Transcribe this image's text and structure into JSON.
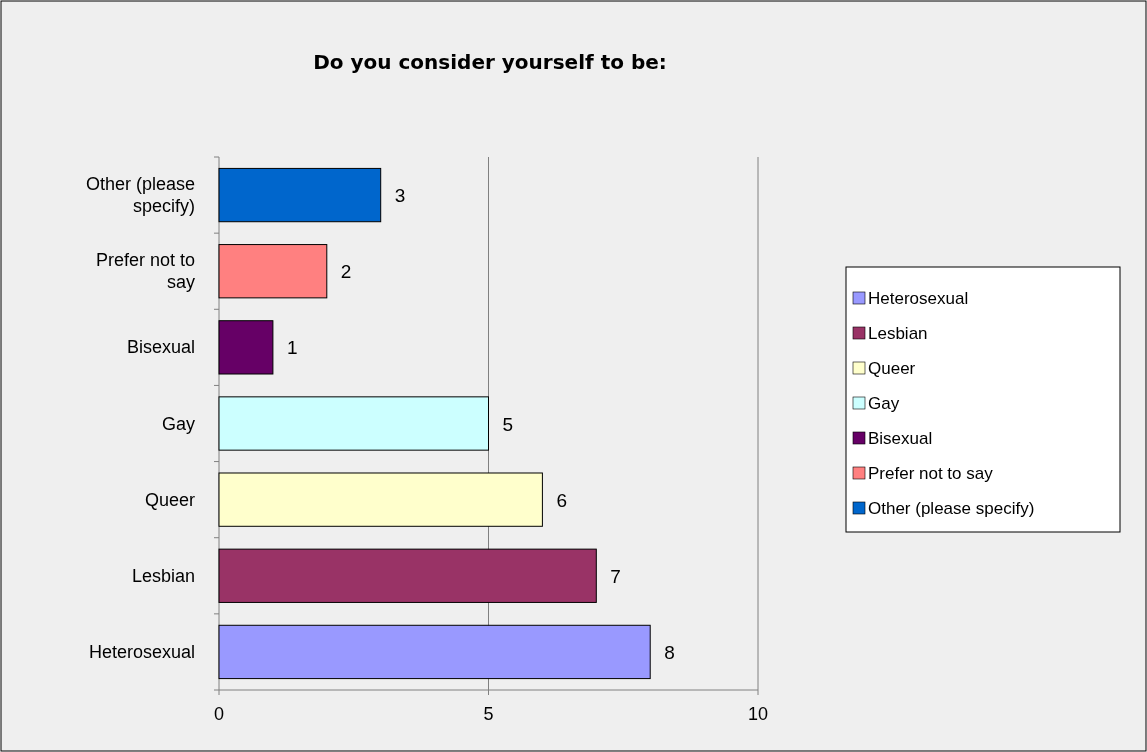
{
  "chart_data": {
    "type": "bar",
    "title": "Do you consider yourself to be:",
    "orientation": "horizontal",
    "stacked": true,
    "categories": [
      "Other (please specify)",
      "Prefer not to say",
      "Bisexual",
      "Gay",
      "Queer",
      "Lesbian",
      "Heterosexual"
    ],
    "series": [
      {
        "name": "Heterosexual",
        "color": "#9999ff",
        "values": [
          null,
          null,
          null,
          null,
          null,
          null,
          8
        ]
      },
      {
        "name": "Lesbian",
        "color": "#993366",
        "values": [
          null,
          null,
          null,
          null,
          null,
          7,
          null
        ]
      },
      {
        "name": "Queer",
        "color": "#ffffcc",
        "values": [
          null,
          null,
          null,
          null,
          6,
          null,
          null
        ]
      },
      {
        "name": "Gay",
        "color": "#ccffff",
        "values": [
          null,
          null,
          null,
          5,
          null,
          null,
          null
        ]
      },
      {
        "name": "Bisexual",
        "color": "#660066",
        "values": [
          null,
          null,
          1,
          null,
          null,
          null,
          null
        ]
      },
      {
        "name": "Prefer not to say",
        "color": "#ff8080",
        "values": [
          null,
          2,
          null,
          null,
          null,
          null,
          null
        ]
      },
      {
        "name": "Other (please specify)",
        "color": "#0066cc",
        "values": [
          3,
          null,
          null,
          null,
          null,
          null,
          null
        ]
      }
    ],
    "xlim": [
      0,
      10
    ],
    "xticks": [
      0,
      5,
      10
    ],
    "grid": "x",
    "data_labels": true,
    "legend": "right"
  }
}
